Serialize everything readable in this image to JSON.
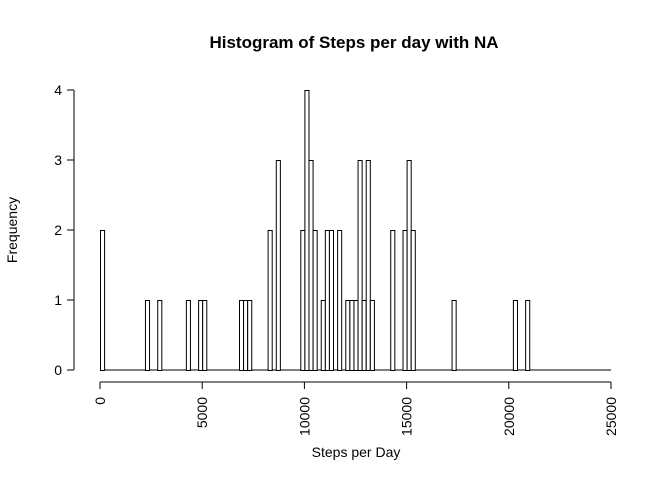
{
  "chart_data": {
    "type": "bar",
    "title": "Histogram of Steps per day with NA",
    "xlabel": "Steps per Day",
    "ylabel": "Frequency",
    "xlim": [
      0,
      25000
    ],
    "ylim": [
      0,
      4
    ],
    "bin_width": 200,
    "x_ticks": [
      "0",
      "5000",
      "10000",
      "15000",
      "20000",
      "25000"
    ],
    "y_ticks": [
      "0",
      "1",
      "2",
      "3",
      "4"
    ],
    "bins": [
      {
        "start": 0,
        "count": 2
      },
      {
        "start": 2200,
        "count": 1
      },
      {
        "start": 2800,
        "count": 1
      },
      {
        "start": 4200,
        "count": 1
      },
      {
        "start": 4800,
        "count": 1
      },
      {
        "start": 5000,
        "count": 1
      },
      {
        "start": 6800,
        "count": 1
      },
      {
        "start": 7000,
        "count": 1
      },
      {
        "start": 7200,
        "count": 1
      },
      {
        "start": 8200,
        "count": 2
      },
      {
        "start": 8600,
        "count": 3
      },
      {
        "start": 9800,
        "count": 2
      },
      {
        "start": 10000,
        "count": 4
      },
      {
        "start": 10200,
        "count": 3
      },
      {
        "start": 10400,
        "count": 2
      },
      {
        "start": 10800,
        "count": 1
      },
      {
        "start": 11000,
        "count": 2
      },
      {
        "start": 11200,
        "count": 2
      },
      {
        "start": 11600,
        "count": 2
      },
      {
        "start": 12000,
        "count": 1
      },
      {
        "start": 12200,
        "count": 1
      },
      {
        "start": 12400,
        "count": 1
      },
      {
        "start": 12600,
        "count": 3
      },
      {
        "start": 12800,
        "count": 1
      },
      {
        "start": 13000,
        "count": 3
      },
      {
        "start": 13200,
        "count": 1
      },
      {
        "start": 14200,
        "count": 2
      },
      {
        "start": 14800,
        "count": 2
      },
      {
        "start": 15000,
        "count": 3
      },
      {
        "start": 15200,
        "count": 2
      },
      {
        "start": 17200,
        "count": 1
      },
      {
        "start": 20200,
        "count": 1
      },
      {
        "start": 20800,
        "count": 1
      }
    ]
  }
}
